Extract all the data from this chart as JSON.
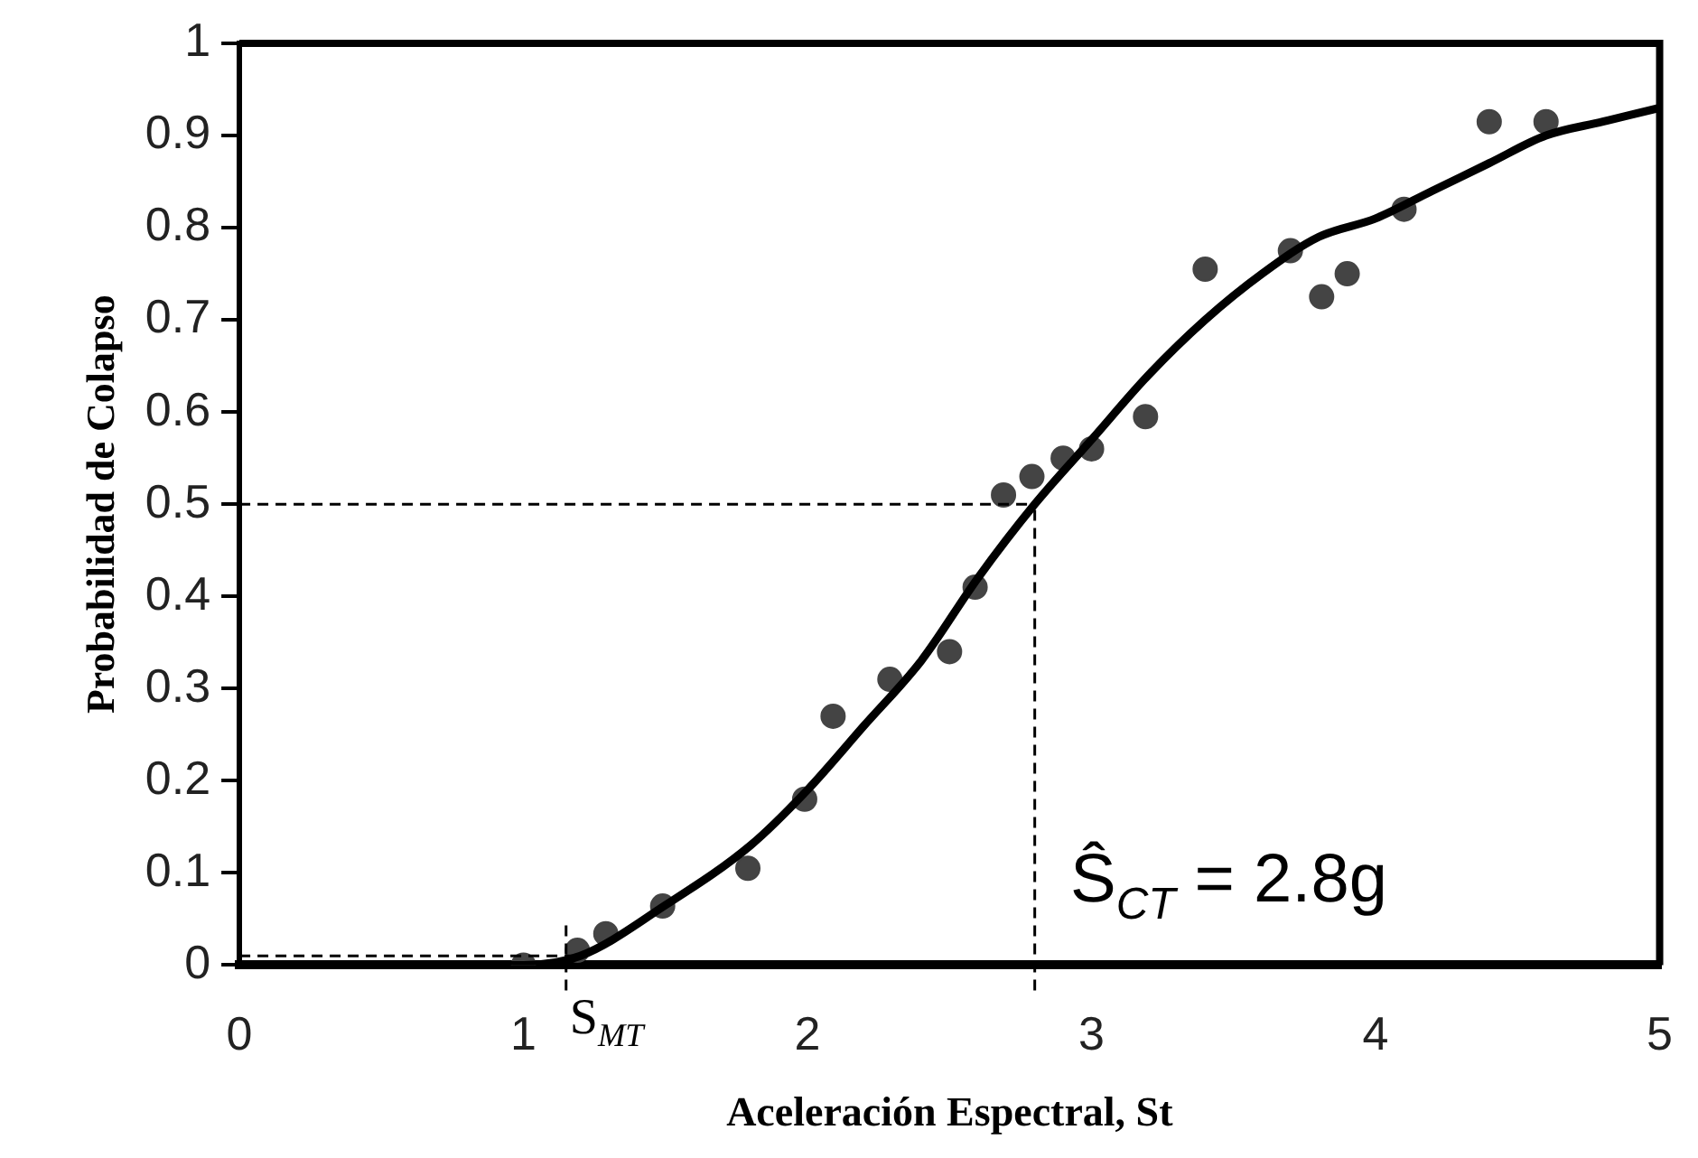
{
  "chart_data": {
    "type": "scatter",
    "xlabel": "Aceleración Espectral, St",
    "ylabel": "Probabilidad de Colapso",
    "xlim": [
      0,
      5
    ],
    "xticks": [
      0,
      1,
      2,
      3,
      4,
      5
    ],
    "ylim": [
      0,
      1
    ],
    "yticks": [
      0,
      0.1,
      0.2,
      0.3,
      0.4,
      0.5,
      0.6,
      0.7,
      0.8,
      0.9,
      1
    ],
    "grid": false,
    "legend": false,
    "series": [
      {
        "color": "#444444",
        "marker": "circle",
        "x": [
          1.0,
          1.19,
          1.29,
          1.49,
          1.79,
          1.99,
          2.09,
          2.29,
          2.5,
          2.59,
          2.69,
          2.79,
          2.9,
          3.0,
          3.19,
          3.4,
          3.7,
          3.81,
          3.9,
          4.1,
          4.4,
          4.6
        ],
        "values": [
          0.0,
          0.016,
          0.034,
          0.064,
          0.105,
          0.18,
          0.27,
          0.31,
          0.34,
          0.41,
          0.51,
          0.53,
          0.55,
          0.56,
          0.595,
          0.755,
          0.775,
          0.725,
          0.75,
          0.82,
          0.915,
          0.915
        ]
      },
      {
        "type": "line",
        "color": "#000000",
        "marker": "none",
        "line_style": "solid",
        "x": [
          0,
          1.0,
          1.2,
          1.5,
          1.8,
          2.0,
          2.2,
          2.4,
          2.6,
          2.8,
          3.0,
          3.2,
          3.4,
          3.6,
          3.8,
          4.0,
          4.2,
          4.4,
          4.6,
          4.8,
          5.0
        ],
        "values": [
          0,
          0,
          0.01,
          0.065,
          0.13,
          0.19,
          0.26,
          0.33,
          0.42,
          0.5,
          0.57,
          0.64,
          0.7,
          0.75,
          0.79,
          0.81,
          0.84,
          0.87,
          0.9,
          0.915,
          0.93
        ]
      }
    ],
    "ref_lines": [
      {
        "axis": "y",
        "value": 0.5,
        "color": "#000000",
        "line_style": "dashed"
      },
      {
        "axis": "x",
        "value": 2.8,
        "color": "#000000",
        "line_style": "dashed"
      },
      {
        "axis": "y",
        "value": 0.01,
        "color": "#000000",
        "line_style": "dashed"
      },
      {
        "axis": "x",
        "value": 1.15,
        "label": "S$_{MT}$",
        "color": "#000000",
        "line_style": "dashed"
      }
    ],
    "annotations": [
      "Ŝ$_{CT}$ = 2.8g"
    ]
  }
}
